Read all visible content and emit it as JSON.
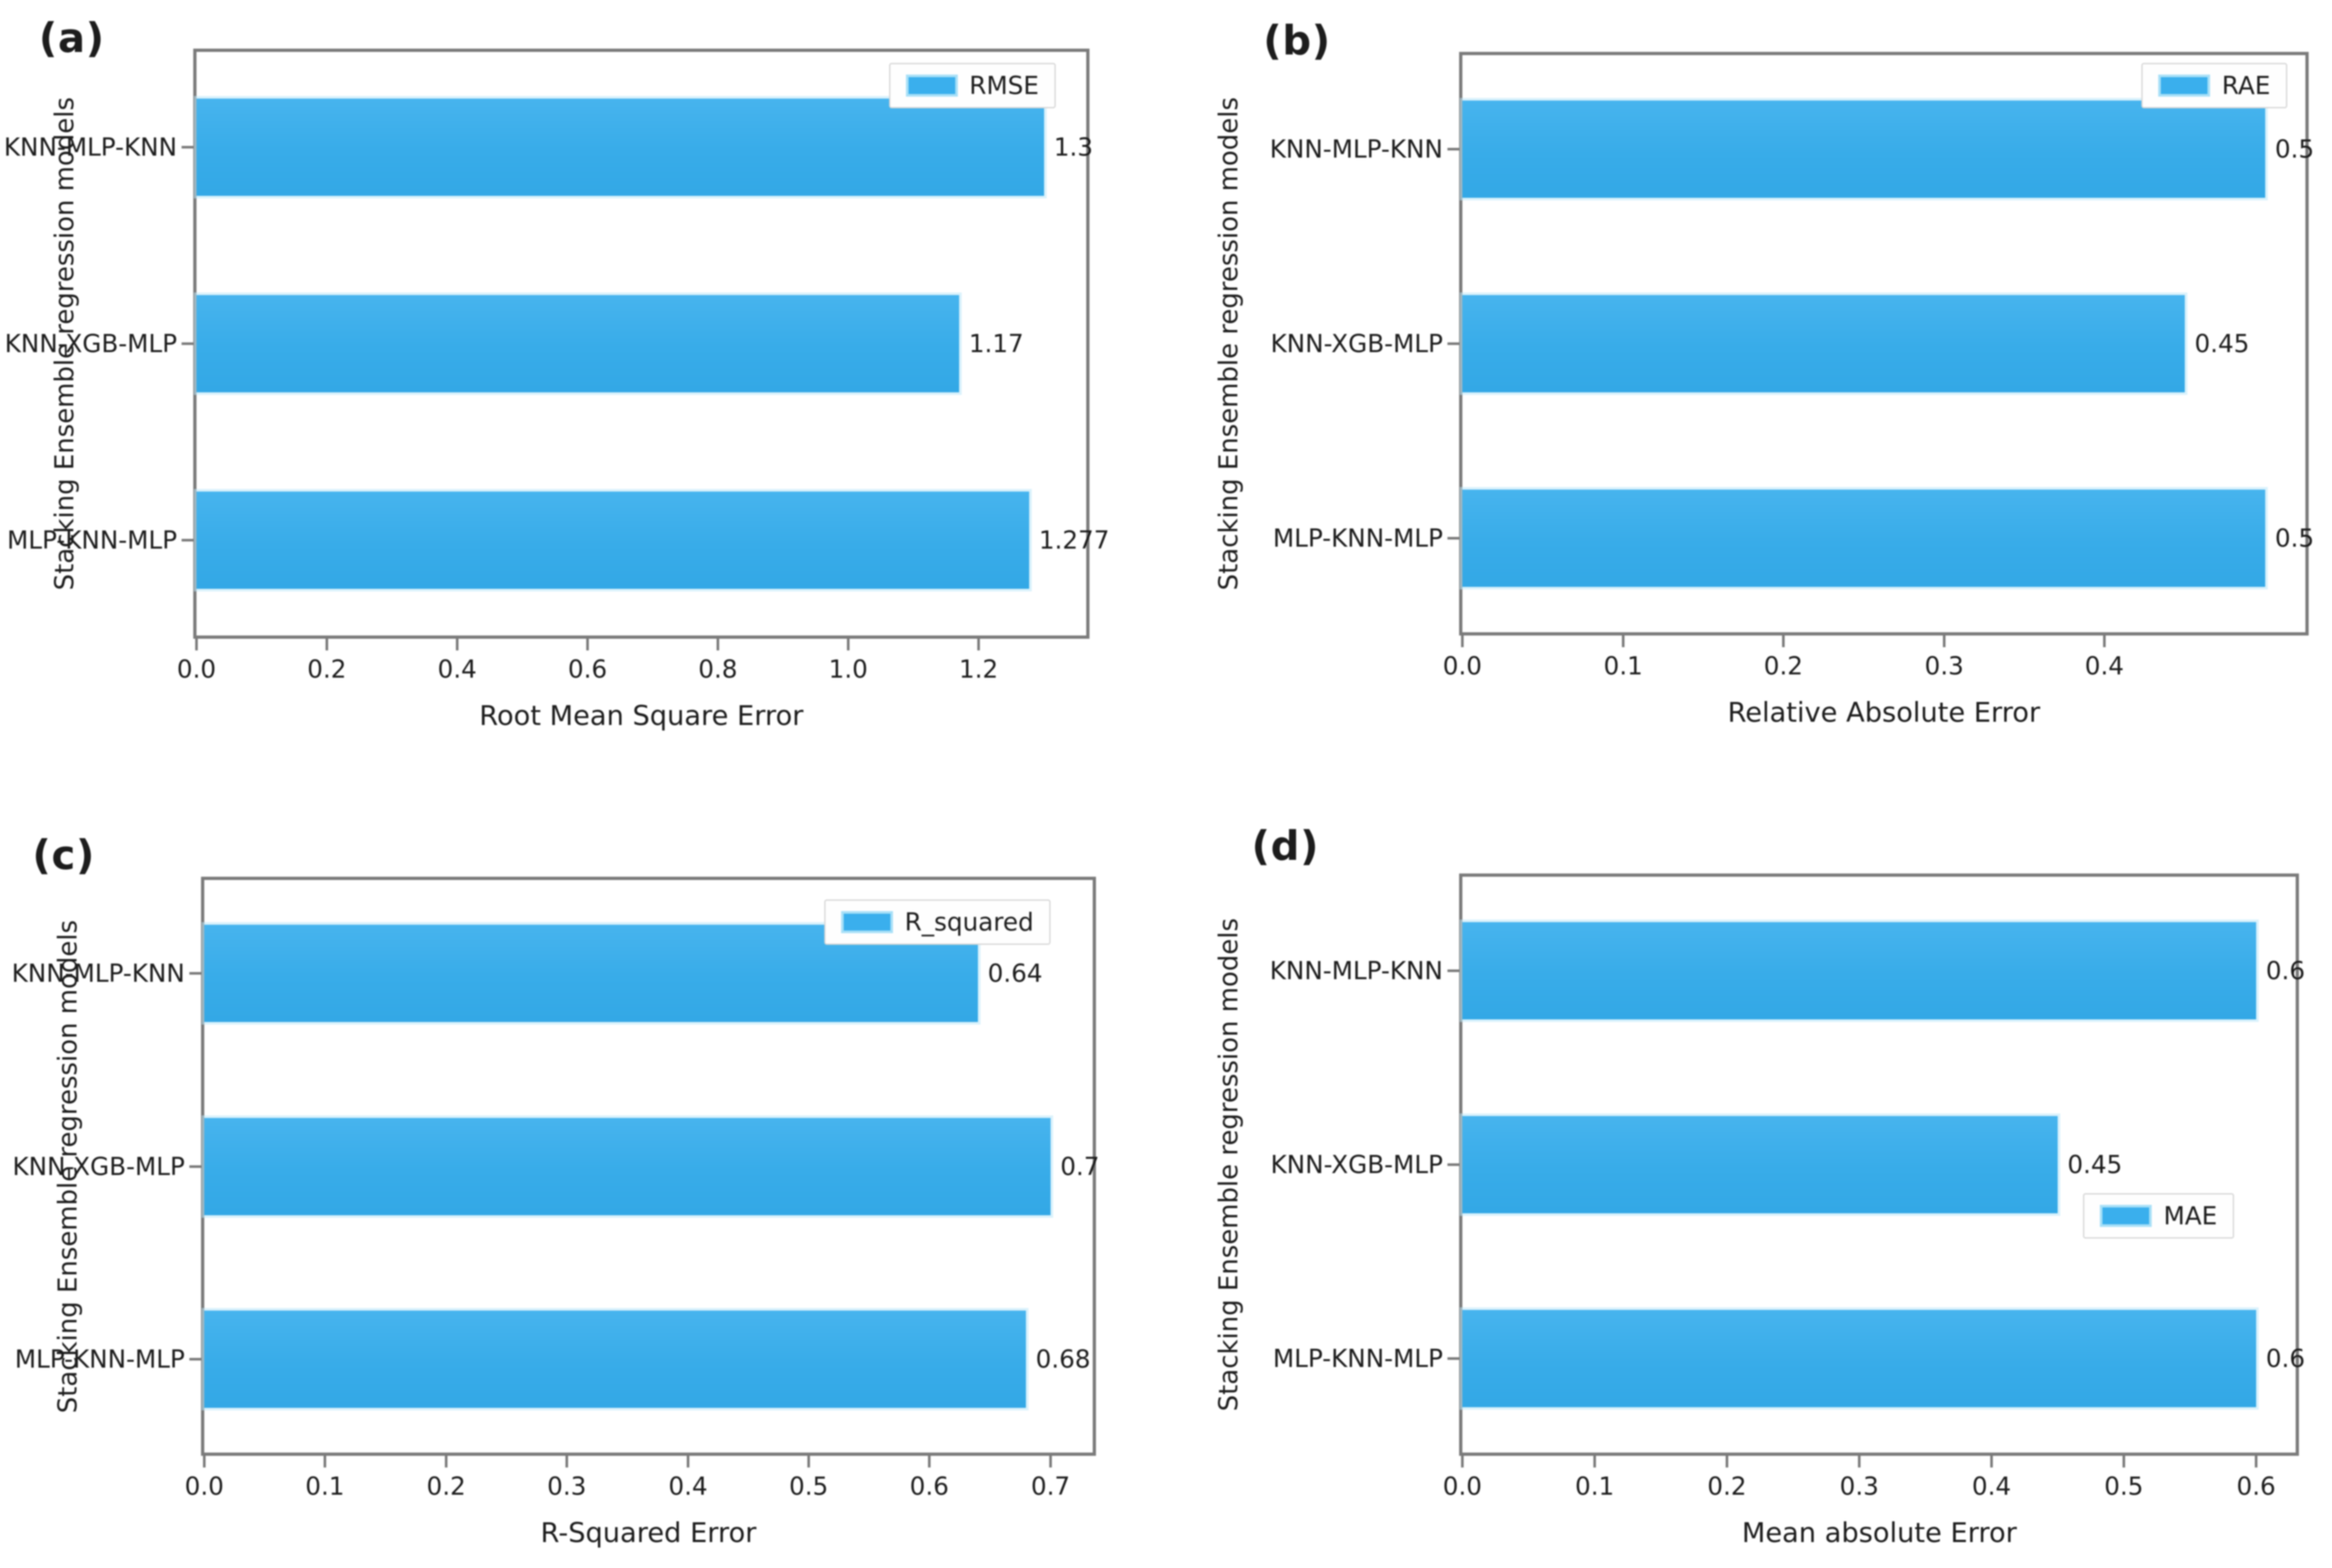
{
  "figure": {
    "background": "#ffffff",
    "bar_color": "#3aafed",
    "bar_edge_color": "#a8e0f7",
    "spine_color": "#7a7a7a",
    "text_color": "#1c1c1c",
    "shared_y_axis_label": "Stacking Ensemble regression models",
    "categories_top_to_bottom": [
      "KNN-MLP-KNN",
      "KNN-XGB-MLP",
      "MLP-KNN-MLP"
    ]
  },
  "chart_data": [
    {
      "type": "bar",
      "orientation": "horizontal",
      "panel_label": "(a)",
      "legend_label": "RMSE",
      "legend_position": "top-right",
      "xlabel": "Root Mean Square Error",
      "ylabel": "Stacking Ensemble regression models",
      "categories": [
        "KNN-MLP-KNN",
        "KNN-XGB-MLP",
        "MLP-KNN-MLP"
      ],
      "values": [
        1.3,
        1.17,
        1.277
      ],
      "value_labels": [
        "1.3",
        "1.17",
        "1.277"
      ],
      "xticks": [
        0.0,
        0.2,
        0.4,
        0.6,
        0.8,
        1.0,
        1.2
      ],
      "xtick_labels": [
        "0.0",
        "0.2",
        "0.4",
        "0.6",
        "0.8",
        "1.0",
        "1.2"
      ],
      "xlim": [
        0,
        1.365
      ],
      "grid": false
    },
    {
      "type": "bar",
      "orientation": "horizontal",
      "panel_label": "(b)",
      "legend_label": "RAE",
      "legend_position": "top-right",
      "xlabel": "Relative Absolute Error",
      "ylabel": "Stacking Ensemble regression models",
      "categories": [
        "KNN-MLP-KNN",
        "KNN-XGB-MLP",
        "MLP-KNN-MLP"
      ],
      "values": [
        0.5,
        0.45,
        0.5
      ],
      "value_labels": [
        "0.5",
        "0.45",
        "0.5"
      ],
      "xticks": [
        0.0,
        0.1,
        0.2,
        0.3,
        0.4
      ],
      "xtick_labels": [
        "0.0",
        "0.1",
        "0.2",
        "0.3",
        "0.4"
      ],
      "xlim": [
        0,
        0.525
      ],
      "grid": false
    },
    {
      "type": "bar",
      "orientation": "horizontal",
      "panel_label": "(c)",
      "legend_label": "R_squared",
      "legend_position": "top-right",
      "xlabel": "R-Squared Error",
      "ylabel": "Stacking Ensemble regression models",
      "categories": [
        "KNN-MLP-KNN",
        "KNN-XGB-MLP",
        "MLP-KNN-MLP"
      ],
      "values": [
        0.64,
        0.7,
        0.68
      ],
      "value_labels": [
        "0.64",
        "0.7",
        "0.68"
      ],
      "xticks": [
        0.0,
        0.1,
        0.2,
        0.3,
        0.4,
        0.5,
        0.6,
        0.7
      ],
      "xtick_labels": [
        "0.0",
        "0.1",
        "0.2",
        "0.3",
        "0.4",
        "0.5",
        "0.6",
        "0.7"
      ],
      "xlim": [
        0,
        0.735
      ],
      "grid": false
    },
    {
      "type": "bar",
      "orientation": "horizontal",
      "panel_label": "(d)",
      "legend_label": "MAE",
      "legend_position": "center-right",
      "xlabel": "Mean absolute Error",
      "ylabel": "Stacking Ensemble regression models",
      "categories": [
        "KNN-MLP-KNN",
        "KNN-XGB-MLP",
        "MLP-KNN-MLP"
      ],
      "values": [
        0.6,
        0.45,
        0.6
      ],
      "value_labels": [
        "0.6",
        "0.45",
        "0.6"
      ],
      "xticks": [
        0.0,
        0.1,
        0.2,
        0.3,
        0.4,
        0.5,
        0.6
      ],
      "xtick_labels": [
        "0.0",
        "0.1",
        "0.2",
        "0.3",
        "0.4",
        "0.5",
        "0.6"
      ],
      "xlim": [
        0,
        0.63
      ],
      "grid": false
    }
  ]
}
